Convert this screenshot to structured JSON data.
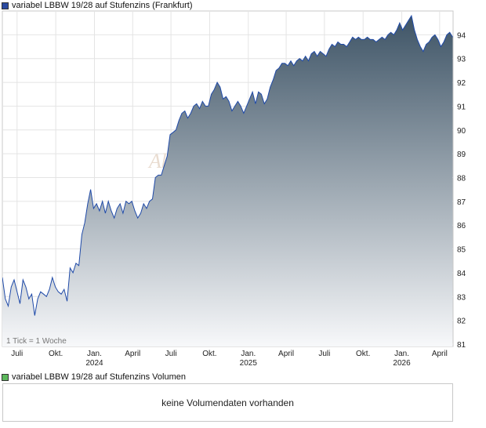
{
  "legend": {
    "price_label": "variabel LBBW 19/28 auf Stufenzins (Frankfurt)",
    "price_color": "#2a4aa0",
    "volume_label": "variabel LBBW 19/28 auf Stufenzins Volumen",
    "volume_color": "#5cb85c"
  },
  "watermark": "Akt",
  "tick_note": "1 Tick = 1 Woche",
  "volume_box": {
    "message": "keine Volumendaten vorhanden"
  },
  "chart_data": {
    "type": "area",
    "y_ticks": [
      81,
      82,
      83,
      84,
      85,
      86,
      87,
      88,
      89,
      90,
      91,
      92,
      93,
      94
    ],
    "ylim": [
      80.9,
      95.0
    ],
    "xlim": [
      "2023-05-27",
      "2026-05-03"
    ],
    "x_ticks": [
      {
        "date": "2023-07-01",
        "label": "Juli",
        "year": ""
      },
      {
        "date": "2023-10-01",
        "label": "Okt.",
        "year": ""
      },
      {
        "date": "2024-01-01",
        "label": "Jan.",
        "year": "2024"
      },
      {
        "date": "2024-04-01",
        "label": "April",
        "year": ""
      },
      {
        "date": "2024-07-01",
        "label": "Juli",
        "year": ""
      },
      {
        "date": "2024-10-01",
        "label": "Okt.",
        "year": ""
      },
      {
        "date": "2025-01-01",
        "label": "Jan.",
        "year": "2025"
      },
      {
        "date": "2025-04-01",
        "label": "April",
        "year": ""
      },
      {
        "date": "2025-07-01",
        "label": "Juli",
        "year": ""
      },
      {
        "date": "2025-10-01",
        "label": "Okt.",
        "year": ""
      },
      {
        "date": "2026-01-01",
        "label": "Jan.",
        "year": "2026"
      },
      {
        "date": "2026-04-01",
        "label": "April",
        "year": ""
      }
    ],
    "grid": true,
    "line_color": "#1f4aa8",
    "fill_top_color": "#3e5466",
    "fill_bottom_color": "#f7f8fa",
    "series": [
      {
        "points": [
          [
            "2023-05-27",
            83.8
          ],
          [
            "2023-06-03",
            82.9
          ],
          [
            "2023-06-10",
            82.6
          ],
          [
            "2023-06-17",
            83.4
          ],
          [
            "2023-06-24",
            83.7
          ],
          [
            "2023-07-01",
            83.2
          ],
          [
            "2023-07-08",
            82.7
          ],
          [
            "2023-07-15",
            83.7
          ],
          [
            "2023-07-22",
            83.4
          ],
          [
            "2023-07-29",
            82.9
          ],
          [
            "2023-08-05",
            83.1
          ],
          [
            "2023-08-12",
            82.2
          ],
          [
            "2023-08-19",
            82.9
          ],
          [
            "2023-08-26",
            83.2
          ],
          [
            "2023-09-02",
            83.1
          ],
          [
            "2023-09-09",
            83.0
          ],
          [
            "2023-09-16",
            83.3
          ],
          [
            "2023-09-23",
            83.8
          ],
          [
            "2023-09-30",
            83.4
          ],
          [
            "2023-10-07",
            83.2
          ],
          [
            "2023-10-14",
            83.1
          ],
          [
            "2023-10-21",
            83.3
          ],
          [
            "2023-10-28",
            82.8
          ],
          [
            "2023-11-04",
            84.2
          ],
          [
            "2023-11-11",
            84.0
          ],
          [
            "2023-11-18",
            84.4
          ],
          [
            "2023-11-25",
            84.3
          ],
          [
            "2023-12-02",
            85.6
          ],
          [
            "2023-12-09",
            86.1
          ],
          [
            "2023-12-16",
            86.9
          ],
          [
            "2023-12-23",
            87.5
          ],
          [
            "2023-12-30",
            86.7
          ],
          [
            "2024-01-06",
            86.9
          ],
          [
            "2024-01-13",
            86.6
          ],
          [
            "2024-01-20",
            87.0
          ],
          [
            "2024-01-27",
            86.5
          ],
          [
            "2024-02-03",
            87.0
          ],
          [
            "2024-02-10",
            86.6
          ],
          [
            "2024-02-17",
            86.3
          ],
          [
            "2024-02-24",
            86.7
          ],
          [
            "2024-03-02",
            86.9
          ],
          [
            "2024-03-09",
            86.5
          ],
          [
            "2024-03-16",
            87.0
          ],
          [
            "2024-03-23",
            86.9
          ],
          [
            "2024-03-30",
            87.0
          ],
          [
            "2024-04-06",
            86.6
          ],
          [
            "2024-04-13",
            86.3
          ],
          [
            "2024-04-20",
            86.5
          ],
          [
            "2024-04-27",
            86.9
          ],
          [
            "2024-05-04",
            86.7
          ],
          [
            "2024-05-11",
            87.0
          ],
          [
            "2024-05-18",
            87.1
          ],
          [
            "2024-05-25",
            88.0
          ],
          [
            "2024-06-01",
            88.1
          ],
          [
            "2024-06-08",
            88.1
          ],
          [
            "2024-06-15",
            88.5
          ],
          [
            "2024-06-22",
            88.9
          ],
          [
            "2024-06-29",
            89.8
          ],
          [
            "2024-07-06",
            89.9
          ],
          [
            "2024-07-13",
            90.0
          ],
          [
            "2024-07-20",
            90.4
          ],
          [
            "2024-07-27",
            90.7
          ],
          [
            "2024-08-03",
            90.8
          ],
          [
            "2024-08-10",
            90.5
          ],
          [
            "2024-08-17",
            90.7
          ],
          [
            "2024-08-24",
            91.0
          ],
          [
            "2024-08-31",
            91.1
          ],
          [
            "2024-09-07",
            90.9
          ],
          [
            "2024-09-14",
            91.2
          ],
          [
            "2024-09-21",
            91.0
          ],
          [
            "2024-09-28",
            91.0
          ],
          [
            "2024-10-05",
            91.5
          ],
          [
            "2024-10-12",
            91.7
          ],
          [
            "2024-10-19",
            92.0
          ],
          [
            "2024-10-26",
            91.8
          ],
          [
            "2024-11-02",
            91.3
          ],
          [
            "2024-11-09",
            91.4
          ],
          [
            "2024-11-16",
            91.2
          ],
          [
            "2024-11-23",
            90.8
          ],
          [
            "2024-11-30",
            91.0
          ],
          [
            "2024-12-07",
            91.2
          ],
          [
            "2024-12-14",
            91.0
          ],
          [
            "2024-12-21",
            90.7
          ],
          [
            "2024-12-28",
            91.0
          ],
          [
            "2025-01-04",
            91.3
          ],
          [
            "2025-01-11",
            91.6
          ],
          [
            "2025-01-18",
            91.1
          ],
          [
            "2025-01-25",
            91.6
          ],
          [
            "2025-02-01",
            91.5
          ],
          [
            "2025-02-08",
            91.1
          ],
          [
            "2025-02-15",
            91.3
          ],
          [
            "2025-02-22",
            91.8
          ],
          [
            "2025-03-01",
            92.1
          ],
          [
            "2025-03-08",
            92.5
          ],
          [
            "2025-03-15",
            92.6
          ],
          [
            "2025-03-22",
            92.8
          ],
          [
            "2025-03-29",
            92.8
          ],
          [
            "2025-04-05",
            92.7
          ],
          [
            "2025-04-12",
            92.9
          ],
          [
            "2025-04-19",
            92.7
          ],
          [
            "2025-04-26",
            92.9
          ],
          [
            "2025-05-03",
            93.0
          ],
          [
            "2025-05-10",
            92.9
          ],
          [
            "2025-05-17",
            93.1
          ],
          [
            "2025-05-24",
            92.9
          ],
          [
            "2025-05-31",
            93.2
          ],
          [
            "2025-06-07",
            93.3
          ],
          [
            "2025-06-14",
            93.1
          ],
          [
            "2025-06-21",
            93.3
          ],
          [
            "2025-06-28",
            93.2
          ],
          [
            "2025-07-05",
            93.1
          ],
          [
            "2025-07-12",
            93.4
          ],
          [
            "2025-07-19",
            93.6
          ],
          [
            "2025-07-26",
            93.5
          ],
          [
            "2025-08-02",
            93.7
          ],
          [
            "2025-08-09",
            93.6
          ],
          [
            "2025-08-16",
            93.6
          ],
          [
            "2025-08-23",
            93.5
          ],
          [
            "2025-08-30",
            93.7
          ],
          [
            "2025-09-06",
            93.9
          ],
          [
            "2025-09-13",
            93.8
          ],
          [
            "2025-09-20",
            93.9
          ],
          [
            "2025-09-27",
            93.8
          ],
          [
            "2025-10-04",
            93.8
          ],
          [
            "2025-10-11",
            93.9
          ],
          [
            "2025-10-18",
            93.8
          ],
          [
            "2025-10-25",
            93.8
          ],
          [
            "2025-11-01",
            93.7
          ],
          [
            "2025-11-08",
            93.8
          ],
          [
            "2025-11-15",
            93.9
          ],
          [
            "2025-11-22",
            93.8
          ],
          [
            "2025-11-29",
            94.0
          ],
          [
            "2025-12-06",
            94.1
          ],
          [
            "2025-12-13",
            94.0
          ],
          [
            "2025-12-20",
            94.2
          ],
          [
            "2025-12-27",
            94.5
          ],
          [
            "2026-01-03",
            94.2
          ],
          [
            "2026-01-10",
            94.4
          ],
          [
            "2026-01-17",
            94.6
          ],
          [
            "2026-01-24",
            94.8
          ],
          [
            "2026-01-31",
            94.2
          ],
          [
            "2026-02-07",
            93.8
          ],
          [
            "2026-02-14",
            93.5
          ],
          [
            "2026-02-21",
            93.3
          ],
          [
            "2026-02-28",
            93.6
          ],
          [
            "2026-03-07",
            93.7
          ],
          [
            "2026-03-14",
            93.9
          ],
          [
            "2026-03-21",
            94.0
          ],
          [
            "2026-03-28",
            93.8
          ],
          [
            "2026-04-04",
            93.5
          ],
          [
            "2026-04-11",
            93.7
          ],
          [
            "2026-04-18",
            94.0
          ],
          [
            "2026-04-25",
            94.1
          ],
          [
            "2026-05-02",
            93.9
          ]
        ]
      }
    ]
  }
}
